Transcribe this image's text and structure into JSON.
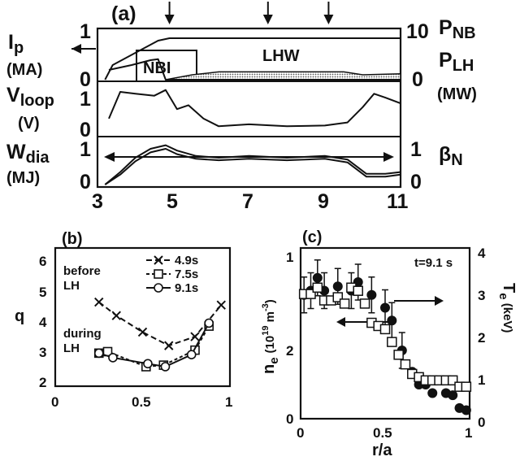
{
  "panel_a": {
    "label": "(a)",
    "left_labels": {
      "ip": "I",
      "ip_sub": "p",
      "ip_unit": "(MA)",
      "vloop": "V",
      "vloop_sub": "loop",
      "vloop_unit": "(V)",
      "wdia": "W",
      "wdia_sub": "dia",
      "wdia_unit": "(MJ)"
    },
    "right_labels": {
      "pnb": "P",
      "pnb_sub": "NB",
      "plh": "P",
      "plh_sub": "LH",
      "power_unit": "(MW)",
      "betan": "β",
      "betan_sub": "N"
    },
    "text_nbi": "NBI",
    "text_lhw": "LHW",
    "ticks": {
      "ip_left": [
        "1",
        "0"
      ],
      "power_right": [
        "10",
        "0"
      ],
      "vloop_left": [
        "1",
        "0"
      ],
      "wdia_left": [
        "1",
        "0"
      ],
      "betan_right": [
        "1",
        "0"
      ],
      "time": [
        "3",
        "5",
        "7",
        "9",
        "11"
      ]
    }
  },
  "panel_b": {
    "label": "(b)",
    "ylabel": "q",
    "yticks": [
      "2",
      "3",
      "4",
      "5",
      "6"
    ],
    "xticks": [
      "0",
      "0.5",
      "1"
    ],
    "text_before": "before",
    "text_before2": "LH",
    "text_during": "during",
    "text_during2": "LH",
    "legend": [
      "4.9s",
      "7.5s",
      "9.1s"
    ]
  },
  "panel_c": {
    "label": "(c)",
    "ylabel_left": "n",
    "ylabel_left_sub": "e",
    "ylabel_left_unit": "(10",
    "ylabel_left_exp": "19",
    "ylabel_left_m": " m",
    "ylabel_left_mexp": "-3",
    "ylabel_left_close": ")",
    "ylabel_right": "T",
    "ylabel_right_sub": "e",
    "ylabel_right_unit": " (keV)",
    "time_label": "t=9.1 s",
    "xlabel": "r/a",
    "yticks_left": [
      "0",
      "1",
      "2"
    ],
    "yticks_right": [
      "0",
      "1",
      "2",
      "3",
      "4"
    ],
    "xticks": [
      "0",
      "0.5",
      "1"
    ]
  },
  "chart_data": [
    {
      "type": "line",
      "panel": "a",
      "xlim": [
        3,
        11
      ],
      "arrow_times": [
        4.9,
        7.5,
        9.1
      ],
      "series": [
        {
          "name": "Ip",
          "x": [
            3.2,
            3.4,
            4.0,
            4.6,
            4.9,
            11.0
          ],
          "y": [
            0.0,
            0.3,
            0.55,
            0.8,
            0.85,
            0.85
          ]
        },
        {
          "name": "P_NB",
          "x": [
            3.3,
            3.9,
            4.4,
            4.6,
            4.8,
            11.0
          ],
          "y": [
            2.0,
            3.0,
            4.0,
            4.2,
            0.0,
            0.0
          ]
        },
        {
          "name": "P_LH",
          "x": [
            4.8,
            5.5,
            6.2,
            9.5,
            10.0,
            11.0
          ],
          "y": [
            0.0,
            1.0,
            1.6,
            1.6,
            1.0,
            1.2
          ]
        },
        {
          "name": "Vloop",
          "x": [
            3.3,
            3.6,
            4.0,
            4.5,
            4.8,
            5.1,
            5.4,
            5.8,
            6.2,
            7.0,
            8.0,
            9.0,
            9.6,
            10.0,
            10.3,
            10.6,
            11.0
          ],
          "y": [
            0.3,
            1.0,
            0.95,
            0.9,
            1.05,
            0.55,
            0.65,
            0.3,
            0.1,
            0.15,
            0.1,
            0.12,
            0.2,
            0.6,
            0.95,
            0.85,
            0.7
          ]
        },
        {
          "name": "Wdia",
          "x": [
            3.2,
            3.6,
            4.0,
            4.4,
            4.8,
            5.1,
            5.6,
            6.2,
            7.0,
            8.0,
            9.0,
            9.6,
            10.1,
            10.6,
            11.0
          ],
          "y": [
            0.0,
            0.35,
            0.75,
            1.0,
            1.1,
            0.95,
            0.8,
            0.75,
            0.8,
            0.75,
            0.8,
            0.7,
            0.3,
            0.3,
            0.35
          ]
        },
        {
          "name": "betaN",
          "x": [
            3.2,
            3.6,
            4.0,
            4.4,
            4.8,
            5.1,
            5.6,
            6.2,
            7.0,
            8.0,
            9.0,
            9.6,
            10.1,
            10.6,
            11.0
          ],
          "y": [
            0.0,
            0.28,
            0.65,
            0.9,
            1.0,
            0.85,
            0.72,
            0.68,
            0.72,
            0.68,
            0.72,
            0.62,
            0.22,
            0.22,
            0.28
          ]
        }
      ]
    },
    {
      "type": "line",
      "panel": "b",
      "xlim": [
        0,
        1
      ],
      "ylim": [
        1.4,
        6
      ],
      "series": [
        {
          "name": "4.9s",
          "x": [
            0.25,
            0.35,
            0.5,
            0.65,
            0.8,
            0.95
          ],
          "y": [
            4.2,
            3.75,
            3.2,
            2.75,
            3.05,
            4.1
          ]
        },
        {
          "name": "7.5s",
          "x": [
            0.25,
            0.3,
            0.52,
            0.62,
            0.8,
            0.88
          ],
          "y": [
            2.5,
            2.55,
            2.05,
            2.1,
            2.6,
            3.4
          ]
        },
        {
          "name": "9.1s",
          "x": [
            0.25,
            0.33,
            0.53,
            0.63,
            0.78,
            0.88
          ],
          "y": [
            2.5,
            2.35,
            2.15,
            2.05,
            2.45,
            3.5
          ]
        }
      ]
    },
    {
      "type": "scatter",
      "panel": "c",
      "xlim": [
        0,
        1
      ],
      "ylim_left": [
        0,
        2.67
      ],
      "ylim_right": [
        0,
        4
      ],
      "series": [
        {
          "name": "ne",
          "x": [
            0.02,
            0.06,
            0.1,
            0.14,
            0.18,
            0.22,
            0.26,
            0.3,
            0.34,
            0.38,
            0.42,
            0.46,
            0.5,
            0.54,
            0.58,
            0.62,
            0.66,
            0.7,
            0.74,
            0.78,
            0.82,
            0.86,
            0.9,
            0.94,
            0.98
          ],
          "y": [
            1.95,
            1.95,
            2.05,
            1.85,
            1.85,
            1.9,
            1.8,
            2.05,
            2.0,
            1.8,
            1.5,
            1.45,
            1.4,
            1.2,
            1.0,
            0.85,
            0.7,
            0.65,
            0.6,
            0.6,
            0.6,
            0.6,
            0.6,
            0.5,
            0.5
          ]
        },
        {
          "name": "Te",
          "x": [
            0.02,
            0.06,
            0.1,
            0.14,
            0.22,
            0.3,
            0.34,
            0.42,
            0.5,
            0.54,
            0.6,
            0.66,
            0.7,
            0.74,
            0.78,
            0.86,
            0.9,
            0.94,
            0.98
          ],
          "y": [
            2.9,
            3.0,
            3.3,
            3.0,
            3.1,
            3.0,
            3.2,
            2.9,
            2.6,
            2.3,
            1.6,
            1.1,
            0.8,
            0.8,
            0.6,
            0.6,
            0.55,
            0.25,
            0.2
          ]
        }
      ]
    }
  ]
}
